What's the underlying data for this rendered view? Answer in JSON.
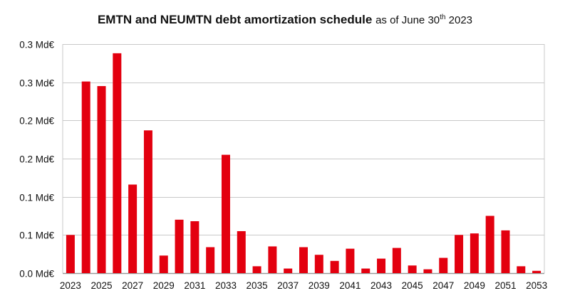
{
  "title": {
    "main": "EMTN and NEUMTN debt amortization schedule",
    "sub_prefix": "as of June 30",
    "sub_sup": "th",
    "sub_suffix": "2023"
  },
  "colors": {
    "bar": "#e3000f",
    "grid": "#c8c8c8",
    "axis": "#999999",
    "text": "#111111"
  },
  "chart_data": {
    "type": "bar",
    "title": "EMTN and NEUMTN debt amortization schedule as of June 30th 2023",
    "xlabel": "",
    "ylabel": "",
    "ylim": [
      0,
      0.3
    ],
    "grid": true,
    "legend": "none",
    "y_ticks": [
      {
        "value": 0.0,
        "label": "0.0 Md€"
      },
      {
        "value": 0.05,
        "label": "0.1 Md€"
      },
      {
        "value": 0.1,
        "label": "0.1 Md€"
      },
      {
        "value": 0.15,
        "label": "0.2 Md€"
      },
      {
        "value": 0.2,
        "label": "0.2 Md€"
      },
      {
        "value": 0.25,
        "label": "0.3 Md€"
      },
      {
        "value": 0.3,
        "label": "0.3 Md€"
      }
    ],
    "x_tick_labels": [
      "2023",
      "2025",
      "2027",
      "2029",
      "2031",
      "2033",
      "2035",
      "2037",
      "2039",
      "2041",
      "2043",
      "2045",
      "2047",
      "2049",
      "2051",
      "2053"
    ],
    "categories": [
      "2023",
      "2024",
      "2025",
      "2026",
      "2027",
      "2028",
      "2029",
      "2030",
      "2031",
      "2032",
      "2033",
      "2034",
      "2035",
      "2036",
      "2037",
      "2038",
      "2039",
      "2040",
      "2041",
      "2042",
      "2043",
      "2044",
      "2045",
      "2046",
      "2047",
      "2048",
      "2049",
      "2050",
      "2051",
      "2052",
      "2053"
    ],
    "values": [
      0.05,
      0.251,
      0.245,
      0.288,
      0.116,
      0.187,
      0.023,
      0.07,
      0.068,
      0.034,
      0.155,
      0.055,
      0.009,
      0.035,
      0.006,
      0.034,
      0.024,
      0.016,
      0.032,
      0.006,
      0.019,
      0.033,
      0.01,
      0.005,
      0.02,
      0.05,
      0.052,
      0.075,
      0.056,
      0.009,
      0.003
    ]
  }
}
